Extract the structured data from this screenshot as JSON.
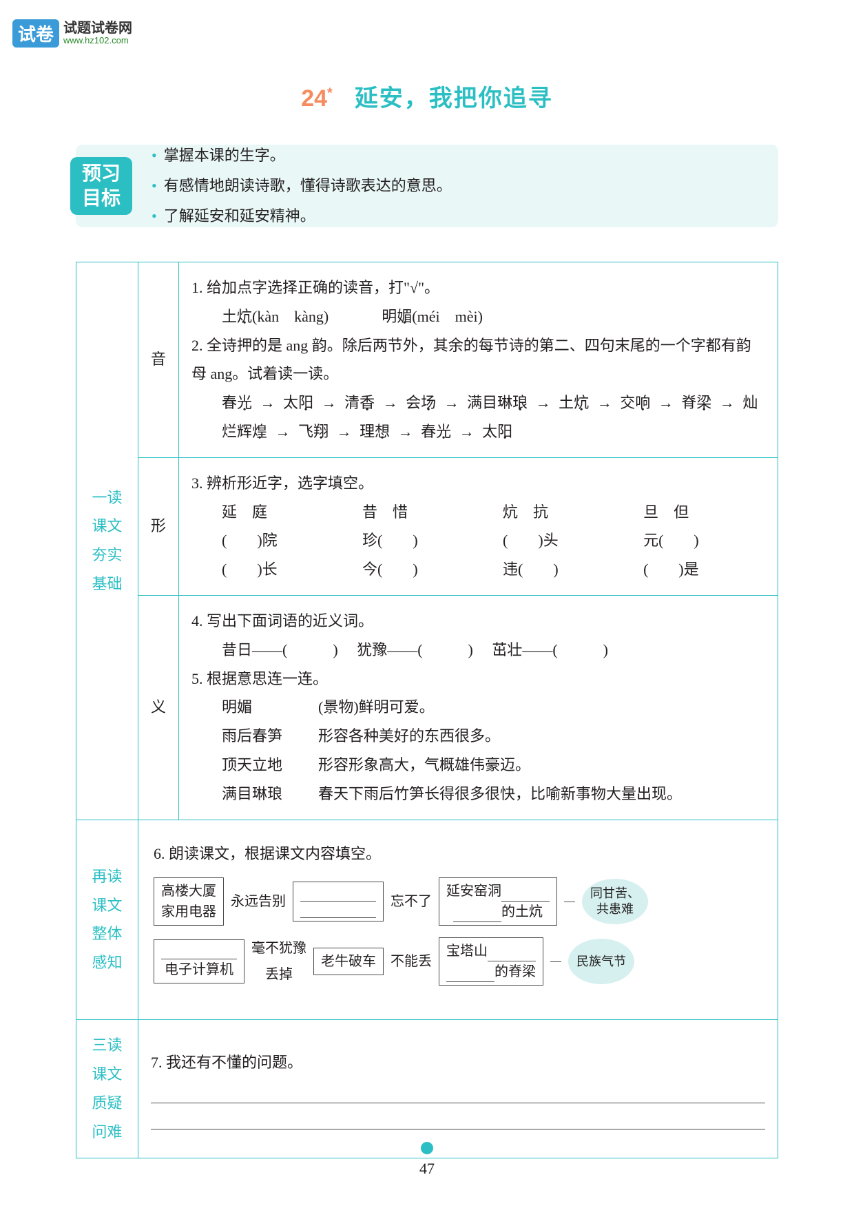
{
  "logo": {
    "badge": "试卷",
    "main": "试题试卷网",
    "url": "www.hz102.com"
  },
  "title": {
    "number": "24",
    "sup": "*",
    "text": "延安，我把你追寻"
  },
  "preview": {
    "tab_line1": "预习",
    "tab_line2": "目标",
    "goals": [
      "掌握本课的生字。",
      "有感情地朗读诗歌，懂得诗歌表达的意思。",
      "了解延安和延安精神。"
    ]
  },
  "sections": {
    "s1": {
      "label1": "一读课文",
      "label2": "夯实基础"
    },
    "s2": {
      "label1": "再读课文",
      "label2": "整体感知"
    },
    "s3": {
      "label1": "三读课文",
      "label2": "质疑问难"
    }
  },
  "yin": {
    "label": "音",
    "q1_intro": "1. 给加点字选择正确的读音，打\"√\"。",
    "q1_items": [
      {
        "word_pre": "土",
        "word_dot": "炕",
        "py": "(kàn　kàng)"
      },
      {
        "word_pre": "明",
        "word_dot": "媚",
        "py": "(méi　mèi)"
      }
    ],
    "q2_intro": "2. 全诗押的是 ang 韵。除后两节外，其余的每节诗的第二、四句末尾的一个字都有韵母 ang。试着读一读。",
    "q2_chain": [
      "春光",
      "太阳",
      "清香",
      "会场",
      "满目琳琅",
      "土炕",
      "交响",
      "脊梁",
      "灿烂辉煌",
      "飞翔",
      "理想",
      "春光",
      "太阳"
    ]
  },
  "xing": {
    "label": "形",
    "q3_intro": "3. 辨析形近字，选字填空。",
    "pairs": [
      {
        "a": "延",
        "b": "庭",
        "blanks": [
          "(　　)院",
          "(　　)长"
        ]
      },
      {
        "a": "昔",
        "b": "惜",
        "blanks": [
          "珍(　　)",
          "今(　　)"
        ]
      },
      {
        "a": "炕",
        "b": "抗",
        "blanks": [
          "(　　)头",
          "违(　　)"
        ]
      },
      {
        "a": "旦",
        "b": "但",
        "blanks": [
          "元(　　)",
          "(　　)是"
        ]
      }
    ]
  },
  "yi": {
    "label": "义",
    "q4_intro": "4. 写出下面词语的近义词。",
    "q4_items": [
      "昔日——(　　　)",
      "犹豫——(　　　)",
      "茁壮——(　　　)"
    ],
    "q5_intro": "5. 根据意思连一连。",
    "match_left": [
      "明媚",
      "雨后春笋",
      "顶天立地",
      "满目琳琅"
    ],
    "match_right": [
      "(景物)鲜明可爱。",
      "形容各种美好的东西很多。",
      "形容形象高大，气概雄伟豪迈。",
      "春天下雨后竹笋长得很多很快，比喻新事物大量出现。"
    ]
  },
  "flow": {
    "q6_intro": "6. 朗读课文，根据课文内容填空。",
    "row1": {
      "box1a": "高楼大厦",
      "box1b": "家用电器",
      "l1": "永远告别",
      "l2": "忘不了",
      "box3a": "延安窑洞",
      "box3b_suffix": "的土炕",
      "bubble_a": "同甘苦、",
      "bubble_b": "共患难"
    },
    "row2": {
      "box1a": "电子计算机",
      "l1a": "毫不犹豫",
      "l1b": "丢掉",
      "box2": "老牛破车",
      "l2": "不能丢",
      "box3a": "宝塔山",
      "box3b_suffix": "的脊梁",
      "bubble": "民族气节"
    }
  },
  "q7": {
    "intro": "7. 我还有不懂的问题。"
  },
  "page_number": "47",
  "colors": {
    "teal": "#2bbfc4",
    "orange": "#f58b5e",
    "light_teal": "#e9f7f7",
    "bubble": "#d5f0ef",
    "text": "#231f20"
  }
}
